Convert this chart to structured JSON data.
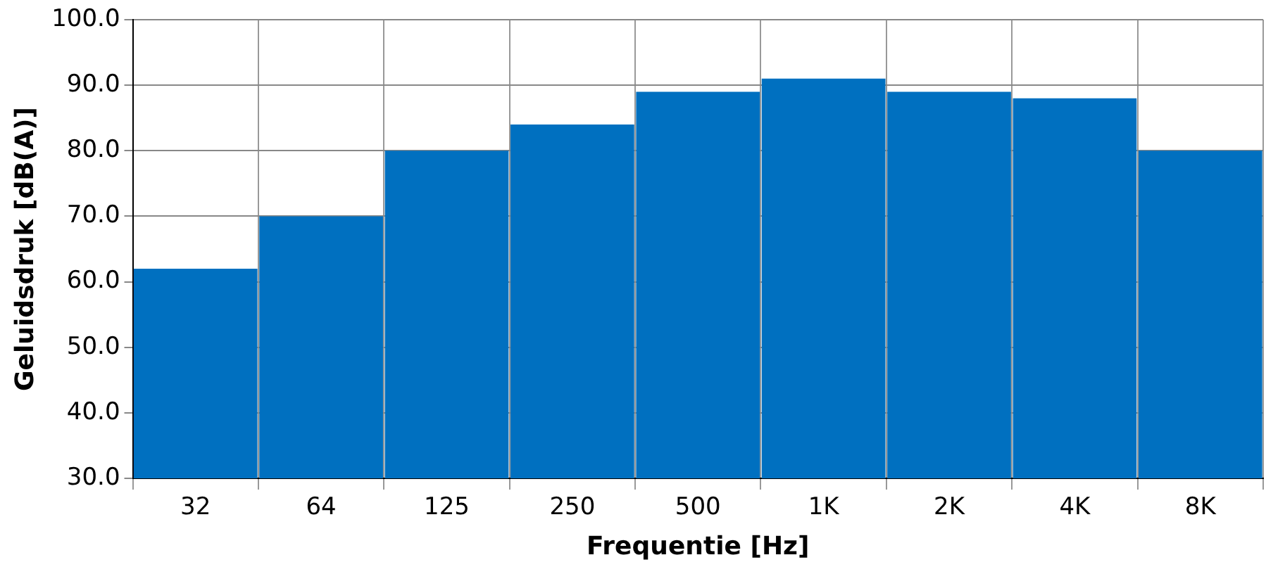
{
  "chart_data": {
    "type": "bar",
    "xlabel": "Frequentie [Hz]",
    "ylabel": "Geluidsdruk [dB(A)]",
    "categories": [
      "32",
      "64",
      "125",
      "250",
      "500",
      "1K",
      "2K",
      "4K",
      "8K"
    ],
    "values": [
      62,
      70,
      80,
      84,
      89,
      91,
      89,
      88,
      80
    ],
    "color": "#0070c0",
    "ylim": [
      30,
      100
    ],
    "yticks": [
      {
        "value": 30,
        "label": "30.0"
      },
      {
        "value": 40,
        "label": "40.0"
      },
      {
        "value": 50,
        "label": "50.0"
      },
      {
        "value": 60,
        "label": "60.0"
      },
      {
        "value": 70,
        "label": "70.0"
      },
      {
        "value": 80,
        "label": "80.0"
      },
      {
        "value": 90,
        "label": "90.0"
      },
      {
        "value": 100,
        "label": "100.0"
      }
    ],
    "grid": true,
    "legend": false
  }
}
